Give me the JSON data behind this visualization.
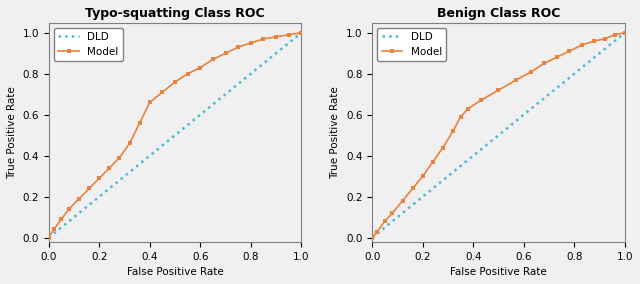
{
  "title1": "Typo-squatting Class ROC",
  "title2": "Benign Class ROC",
  "xlabel1": "False Positive Rate",
  "xlabel2": "False Positive Rate",
  "ylabel1": "True Positive Rate",
  "ylabel2": "True Positive Rate",
  "dld_color": "#4db8d4",
  "model_color": "#e8823c",
  "dld_label": "DLD",
  "model_label": "Model",
  "typo_model_x": [
    0.0,
    0.02,
    0.05,
    0.08,
    0.12,
    0.16,
    0.2,
    0.24,
    0.28,
    0.32,
    0.36,
    0.4,
    0.45,
    0.5,
    0.55,
    0.6,
    0.65,
    0.7,
    0.75,
    0.8,
    0.85,
    0.9,
    0.95,
    1.0
  ],
  "typo_model_y": [
    0.0,
    0.04,
    0.09,
    0.14,
    0.19,
    0.24,
    0.29,
    0.34,
    0.39,
    0.46,
    0.56,
    0.66,
    0.71,
    0.76,
    0.8,
    0.83,
    0.87,
    0.9,
    0.93,
    0.95,
    0.97,
    0.98,
    0.99,
    1.0
  ],
  "benign_model_x": [
    0.0,
    0.02,
    0.05,
    0.08,
    0.12,
    0.16,
    0.2,
    0.24,
    0.28,
    0.32,
    0.35,
    0.38,
    0.43,
    0.5,
    0.57,
    0.63,
    0.68,
    0.73,
    0.78,
    0.83,
    0.88,
    0.92,
    0.96,
    1.0
  ],
  "benign_model_y": [
    0.0,
    0.03,
    0.08,
    0.12,
    0.18,
    0.24,
    0.3,
    0.37,
    0.44,
    0.52,
    0.59,
    0.63,
    0.67,
    0.72,
    0.77,
    0.81,
    0.85,
    0.88,
    0.91,
    0.94,
    0.96,
    0.97,
    0.99,
    1.0
  ],
  "xlim": [
    0.0,
    1.0
  ],
  "ylim": [
    -0.02,
    1.05
  ],
  "xticks": [
    0.0,
    0.2,
    0.4,
    0.6,
    0.8,
    1.0
  ],
  "yticks": [
    0.0,
    0.2,
    0.4,
    0.6,
    0.8,
    1.0
  ],
  "figsize": [
    6.4,
    2.84
  ],
  "dpi": 100,
  "bg_color": "#f0f0f0"
}
